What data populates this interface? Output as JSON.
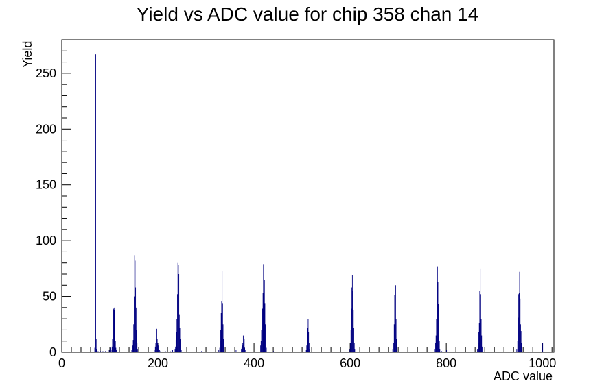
{
  "chart_data": {
    "type": "histogram",
    "title": "Yield vs ADC value for chip 358 chan 14",
    "xlabel": "ADC value",
    "ylabel": "Yield",
    "xlim": [
      0,
      1024
    ],
    "ylim": [
      0,
      280
    ],
    "x_ticks": [
      0,
      200,
      400,
      600,
      800,
      1000
    ],
    "y_ticks": [
      0,
      50,
      100,
      150,
      200,
      250
    ],
    "grid": false,
    "legend": "none",
    "color": "#000080",
    "bins": [
      [
        50,
        2
      ],
      [
        68,
        4
      ],
      [
        69,
        65
      ],
      [
        70,
        267
      ],
      [
        71,
        12
      ],
      [
        72,
        3
      ],
      [
        75,
        1
      ],
      [
        80,
        1
      ],
      [
        85,
        1
      ],
      [
        90,
        1
      ],
      [
        98,
        2
      ],
      [
        100,
        4
      ],
      [
        102,
        2
      ],
      [
        104,
        5
      ],
      [
        105,
        12
      ],
      [
        106,
        25
      ],
      [
        107,
        39
      ],
      [
        108,
        38
      ],
      [
        109,
        40
      ],
      [
        110,
        22
      ],
      [
        111,
        10
      ],
      [
        112,
        4
      ],
      [
        113,
        2
      ],
      [
        145,
        2
      ],
      [
        147,
        6
      ],
      [
        148,
        11
      ],
      [
        149,
        25
      ],
      [
        150,
        50
      ],
      [
        151,
        87
      ],
      [
        152,
        82
      ],
      [
        153,
        58
      ],
      [
        154,
        40
      ],
      [
        155,
        20
      ],
      [
        156,
        8
      ],
      [
        157,
        3
      ],
      [
        192,
        2
      ],
      [
        194,
        5
      ],
      [
        195,
        8
      ],
      [
        196,
        12
      ],
      [
        197,
        21
      ],
      [
        198,
        12
      ],
      [
        199,
        8
      ],
      [
        200,
        6
      ],
      [
        201,
        3
      ],
      [
        203,
        2
      ],
      [
        205,
        1
      ],
      [
        215,
        1
      ],
      [
        225,
        1
      ],
      [
        230,
        2
      ],
      [
        235,
        3
      ],
      [
        236,
        5
      ],
      [
        237,
        11
      ],
      [
        238,
        18
      ],
      [
        239,
        30
      ],
      [
        240,
        52
      ],
      [
        241,
        80
      ],
      [
        242,
        78
      ],
      [
        243,
        70
      ],
      [
        244,
        34
      ],
      [
        245,
        22
      ],
      [
        246,
        12
      ],
      [
        247,
        5
      ],
      [
        248,
        2
      ],
      [
        290,
        1
      ],
      [
        326,
        2
      ],
      [
        328,
        4
      ],
      [
        329,
        10
      ],
      [
        330,
        20
      ],
      [
        331,
        35
      ],
      [
        332,
        46
      ],
      [
        333,
        73
      ],
      [
        334,
        44
      ],
      [
        335,
        25
      ],
      [
        336,
        12
      ],
      [
        337,
        4
      ],
      [
        362,
        2
      ],
      [
        370,
        1
      ],
      [
        373,
        3
      ],
      [
        374,
        4
      ],
      [
        375,
        6
      ],
      [
        376,
        8
      ],
      [
        377,
        15
      ],
      [
        378,
        8
      ],
      [
        379,
        12
      ],
      [
        380,
        4
      ],
      [
        381,
        2
      ],
      [
        410,
        3
      ],
      [
        413,
        6
      ],
      [
        414,
        10
      ],
      [
        415,
        20
      ],
      [
        416,
        28
      ],
      [
        417,
        39
      ],
      [
        418,
        53
      ],
      [
        419,
        79
      ],
      [
        420,
        66
      ],
      [
        421,
        65
      ],
      [
        422,
        44
      ],
      [
        423,
        25
      ],
      [
        424,
        12
      ],
      [
        425,
        4
      ],
      [
        440,
        1
      ],
      [
        508,
        2
      ],
      [
        509,
        6
      ],
      [
        510,
        14
      ],
      [
        511,
        22
      ],
      [
        512,
        30
      ],
      [
        513,
        18
      ],
      [
        514,
        8
      ],
      [
        515,
        3
      ],
      [
        598,
        3
      ],
      [
        600,
        8
      ],
      [
        601,
        20
      ],
      [
        602,
        39
      ],
      [
        603,
        58
      ],
      [
        604,
        69
      ],
      [
        605,
        55
      ],
      [
        606,
        38
      ],
      [
        607,
        22
      ],
      [
        608,
        8
      ],
      [
        609,
        3
      ],
      [
        688,
        3
      ],
      [
        690,
        8
      ],
      [
        691,
        25
      ],
      [
        692,
        51
      ],
      [
        693,
        57
      ],
      [
        694,
        60
      ],
      [
        695,
        30
      ],
      [
        696,
        12
      ],
      [
        697,
        4
      ],
      [
        775,
        3
      ],
      [
        777,
        8
      ],
      [
        778,
        15
      ],
      [
        779,
        30
      ],
      [
        780,
        54
      ],
      [
        781,
        77
      ],
      [
        782,
        63
      ],
      [
        783,
        43
      ],
      [
        784,
        22
      ],
      [
        785,
        10
      ],
      [
        786,
        3
      ],
      [
        790,
        1
      ],
      [
        800,
        2
      ],
      [
        864,
        3
      ],
      [
        866,
        8
      ],
      [
        867,
        18
      ],
      [
        868,
        26
      ],
      [
        869,
        55
      ],
      [
        870,
        75
      ],
      [
        871,
        52
      ],
      [
        872,
        30
      ],
      [
        873,
        15
      ],
      [
        874,
        5
      ],
      [
        946,
        3
      ],
      [
        948,
        10
      ],
      [
        949,
        31
      ],
      [
        950,
        52
      ],
      [
        951,
        53
      ],
      [
        952,
        72
      ],
      [
        953,
        48
      ],
      [
        954,
        25
      ],
      [
        955,
        19
      ],
      [
        956,
        8
      ],
      [
        957,
        3
      ],
      [
        1000,
        8
      ]
    ]
  }
}
